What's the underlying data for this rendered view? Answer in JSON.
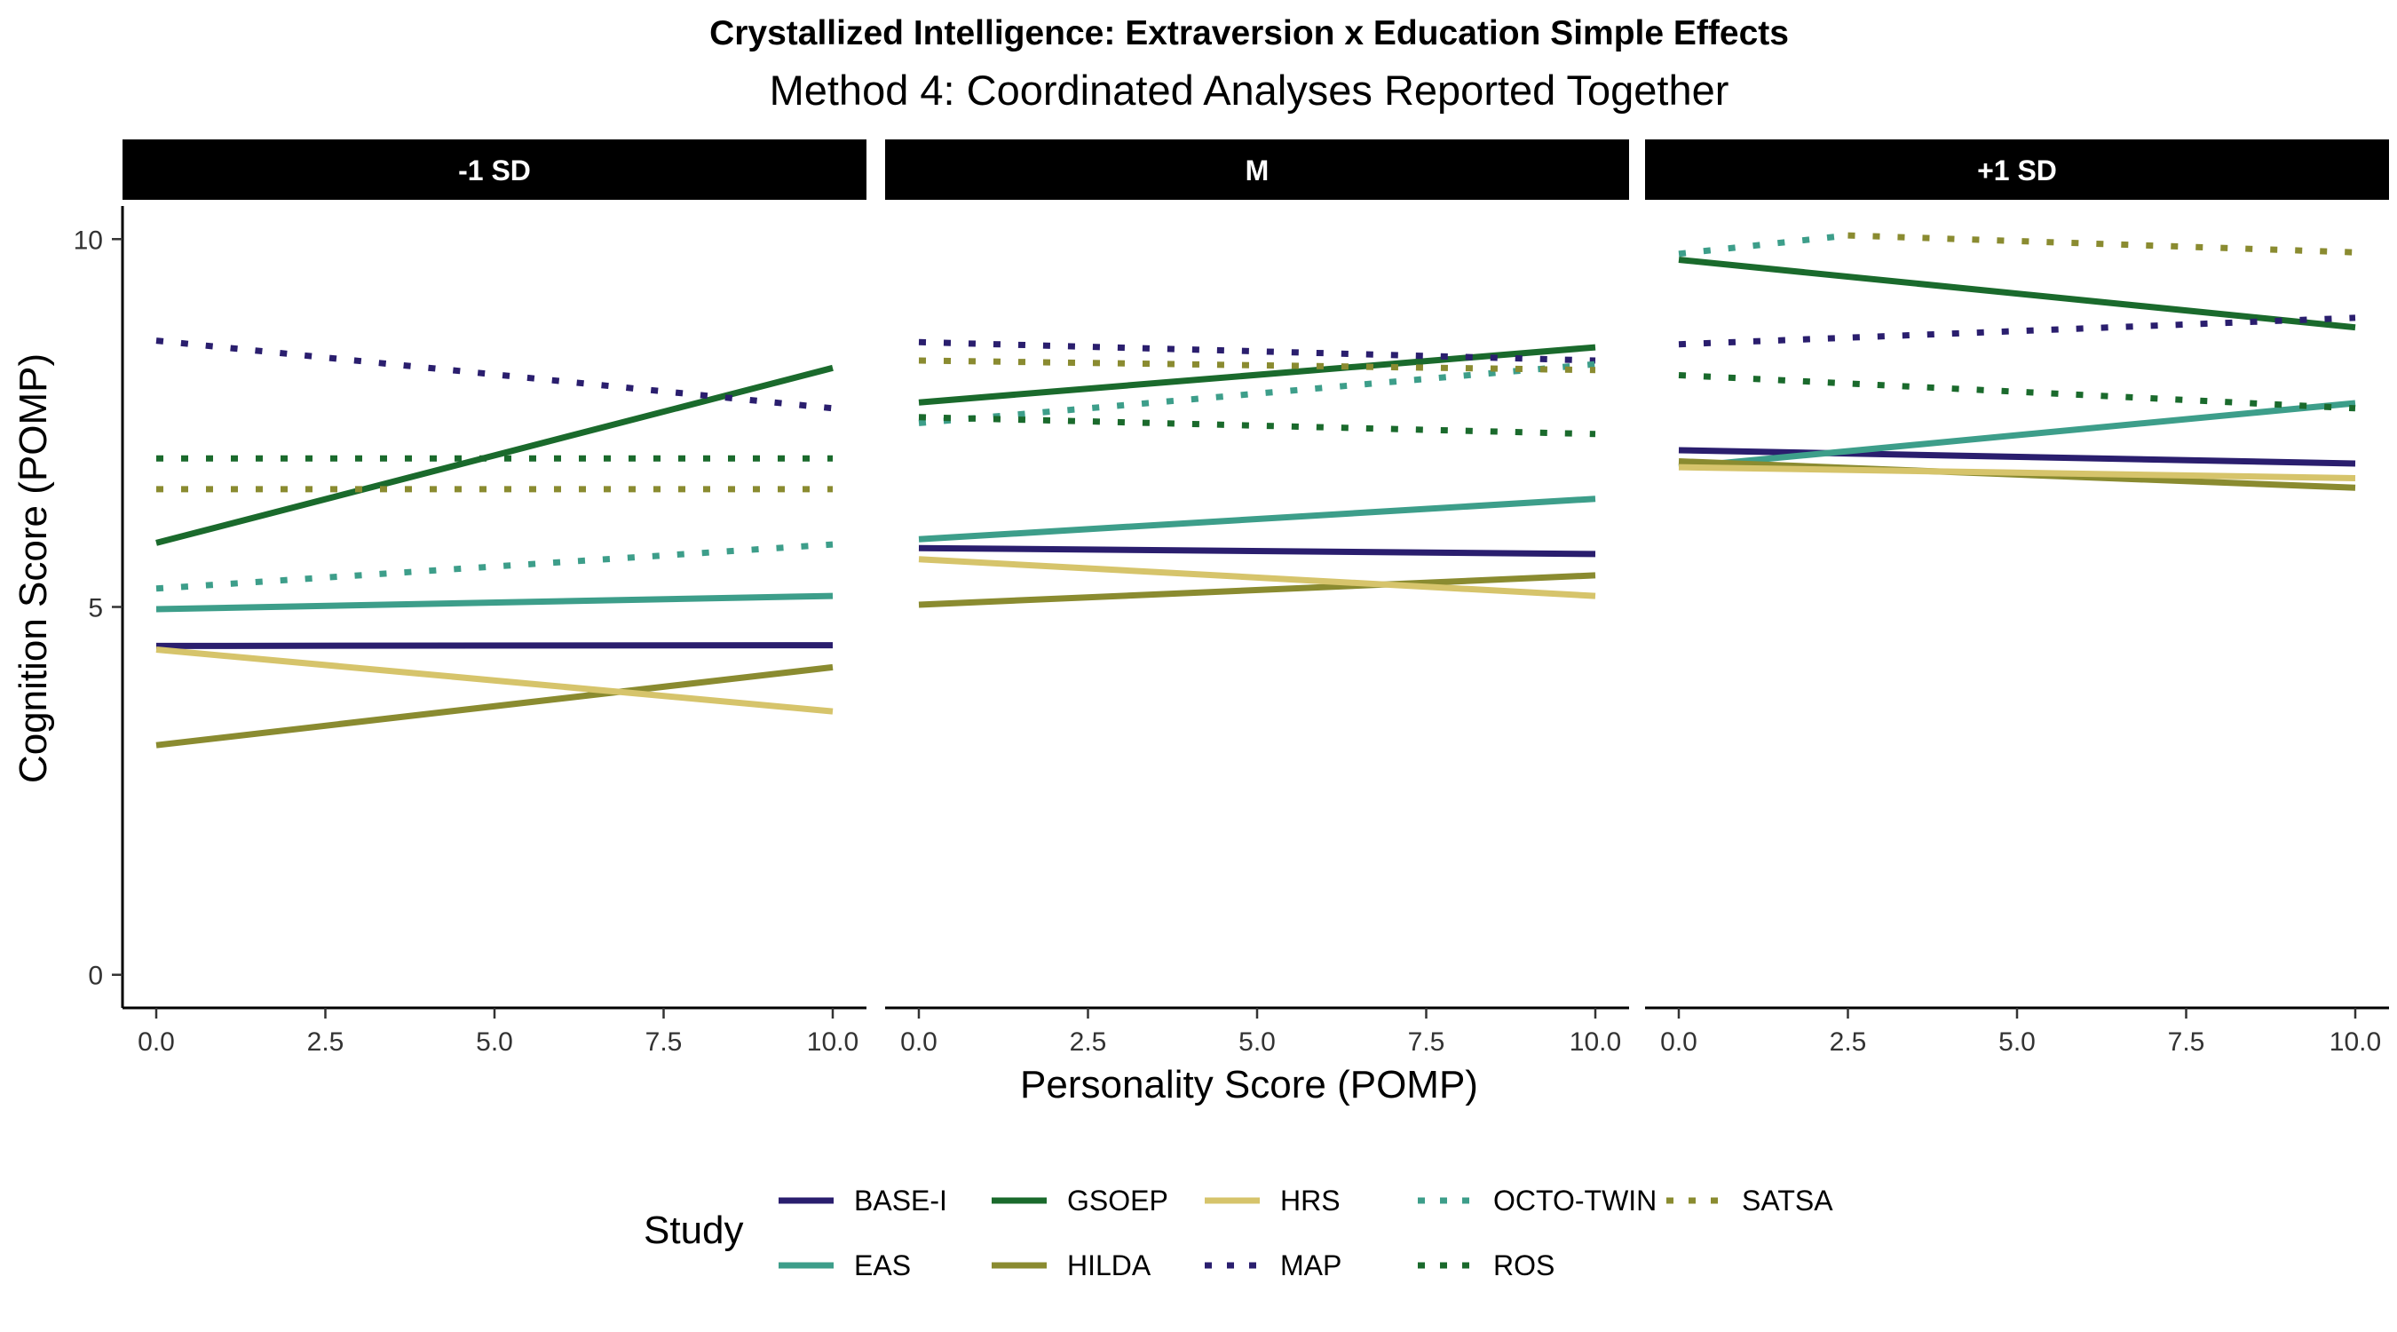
{
  "chart_data": {
    "type": "line",
    "title": "Crystallized Intelligence: Extraversion x Education Simple Effects",
    "subtitle": "Method 4: Coordinated Analyses Reported Together",
    "xlabel": "Personality Score (POMP)",
    "ylabel": "Cognition Score (POMP)",
    "xlim": [
      0,
      10
    ],
    "ylim": [
      -0.45,
      10.45
    ],
    "xticks": [
      "0.0",
      "2.5",
      "5.0",
      "7.5",
      "10.0"
    ],
    "yticks": [
      "0",
      "5",
      "10"
    ],
    "x": [
      0,
      10
    ],
    "legend": {
      "title": "Study",
      "position": "bottom"
    },
    "study_order": [
      "BASE-I",
      "EAS",
      "GSOEP",
      "HILDA",
      "HRS",
      "MAP",
      "OCTO-TWIN",
      "ROS",
      "SATSA"
    ],
    "studies": {
      "BASE-I": {
        "color": "#2a1e6e",
        "dash": "solid"
      },
      "EAS": {
        "color": "#3d9e8a",
        "dash": "solid"
      },
      "GSOEP": {
        "color": "#1a6a2c",
        "dash": "solid"
      },
      "HILDA": {
        "color": "#8a8b30",
        "dash": "solid"
      },
      "HRS": {
        "color": "#d6c46b",
        "dash": "solid"
      },
      "MAP": {
        "color": "#2a1e6e",
        "dash": "dotted"
      },
      "OCTO-TWIN": {
        "color": "#3d9e8a",
        "dash": "dotted"
      },
      "ROS": {
        "color": "#1a6a2c",
        "dash": "dotted"
      },
      "SATSA": {
        "color": "#8a8b30",
        "dash": "dotted"
      }
    },
    "panels": [
      {
        "label": "-1 SD",
        "series": [
          {
            "name": "BASE-I",
            "x": [
              0,
              10
            ],
            "values": [
              4.47,
              4.48
            ]
          },
          {
            "name": "EAS",
            "x": [
              0,
              10
            ],
            "values": [
              4.97,
              5.15
            ]
          },
          {
            "name": "GSOEP",
            "x": [
              0,
              10
            ],
            "values": [
              5.87,
              8.25
            ]
          },
          {
            "name": "HILDA",
            "x": [
              0,
              10
            ],
            "values": [
              3.12,
              4.18
            ]
          },
          {
            "name": "HRS",
            "x": [
              0,
              10
            ],
            "values": [
              4.42,
              3.58
            ]
          },
          {
            "name": "MAP",
            "x": [
              0,
              10
            ],
            "values": [
              8.62,
              7.7
            ]
          },
          {
            "name": "OCTO-TWIN",
            "x": [
              0,
              10
            ],
            "values": [
              5.25,
              5.85
            ]
          },
          {
            "name": "ROS",
            "x": [
              0,
              10
            ],
            "values": [
              7.02,
              7.02
            ]
          },
          {
            "name": "SATSA",
            "x": [
              0,
              10
            ],
            "values": [
              6.6,
              6.6
            ]
          }
        ]
      },
      {
        "label": "M",
        "series": [
          {
            "name": "BASE-I",
            "x": [
              0,
              10
            ],
            "values": [
              5.8,
              5.72
            ]
          },
          {
            "name": "EAS",
            "x": [
              0,
              10
            ],
            "values": [
              5.92,
              6.47
            ]
          },
          {
            "name": "GSOEP",
            "x": [
              0,
              10
            ],
            "values": [
              7.78,
              8.53
            ]
          },
          {
            "name": "HILDA",
            "x": [
              0,
              10
            ],
            "values": [
              5.03,
              5.43
            ]
          },
          {
            "name": "HRS",
            "x": [
              0,
              10
            ],
            "values": [
              5.65,
              5.15
            ]
          },
          {
            "name": "MAP",
            "x": [
              0,
              10
            ],
            "values": [
              8.6,
              8.35
            ]
          },
          {
            "name": "OCTO-TWIN",
            "x": [
              0,
              10
            ],
            "values": [
              7.5,
              8.3
            ]
          },
          {
            "name": "ROS",
            "x": [
              0,
              10
            ],
            "values": [
              7.58,
              7.35
            ]
          },
          {
            "name": "SATSA",
            "x": [
              0,
              10
            ],
            "values": [
              8.35,
              8.22
            ]
          }
        ]
      },
      {
        "label": "+1 SD",
        "series": [
          {
            "name": "BASE-I",
            "x": [
              0,
              10
            ],
            "values": [
              7.13,
              6.95
            ]
          },
          {
            "name": "EAS",
            "x": [
              0,
              10
            ],
            "values": [
              6.9,
              7.77
            ]
          },
          {
            "name": "GSOEP",
            "x": [
              0,
              10
            ],
            "values": [
              9.72,
              8.8
            ]
          },
          {
            "name": "HILDA",
            "x": [
              0,
              10
            ],
            "values": [
              6.98,
              6.62
            ]
          },
          {
            "name": "HRS",
            "x": [
              0,
              10
            ],
            "values": [
              6.9,
              6.75
            ]
          },
          {
            "name": "MAP",
            "x": [
              0,
              10
            ],
            "values": [
              8.57,
              8.93
            ]
          },
          {
            "name": "OCTO-TWIN",
            "x": [
              0,
              2.5
            ],
            "values": [
              9.8,
              10.05
            ]
          },
          {
            "name": "ROS",
            "x": [
              0,
              10
            ],
            "values": [
              8.15,
              7.7
            ]
          },
          {
            "name": "SATSA",
            "x": [
              2.5,
              10
            ],
            "values": [
              10.05,
              9.82
            ]
          }
        ]
      }
    ]
  }
}
